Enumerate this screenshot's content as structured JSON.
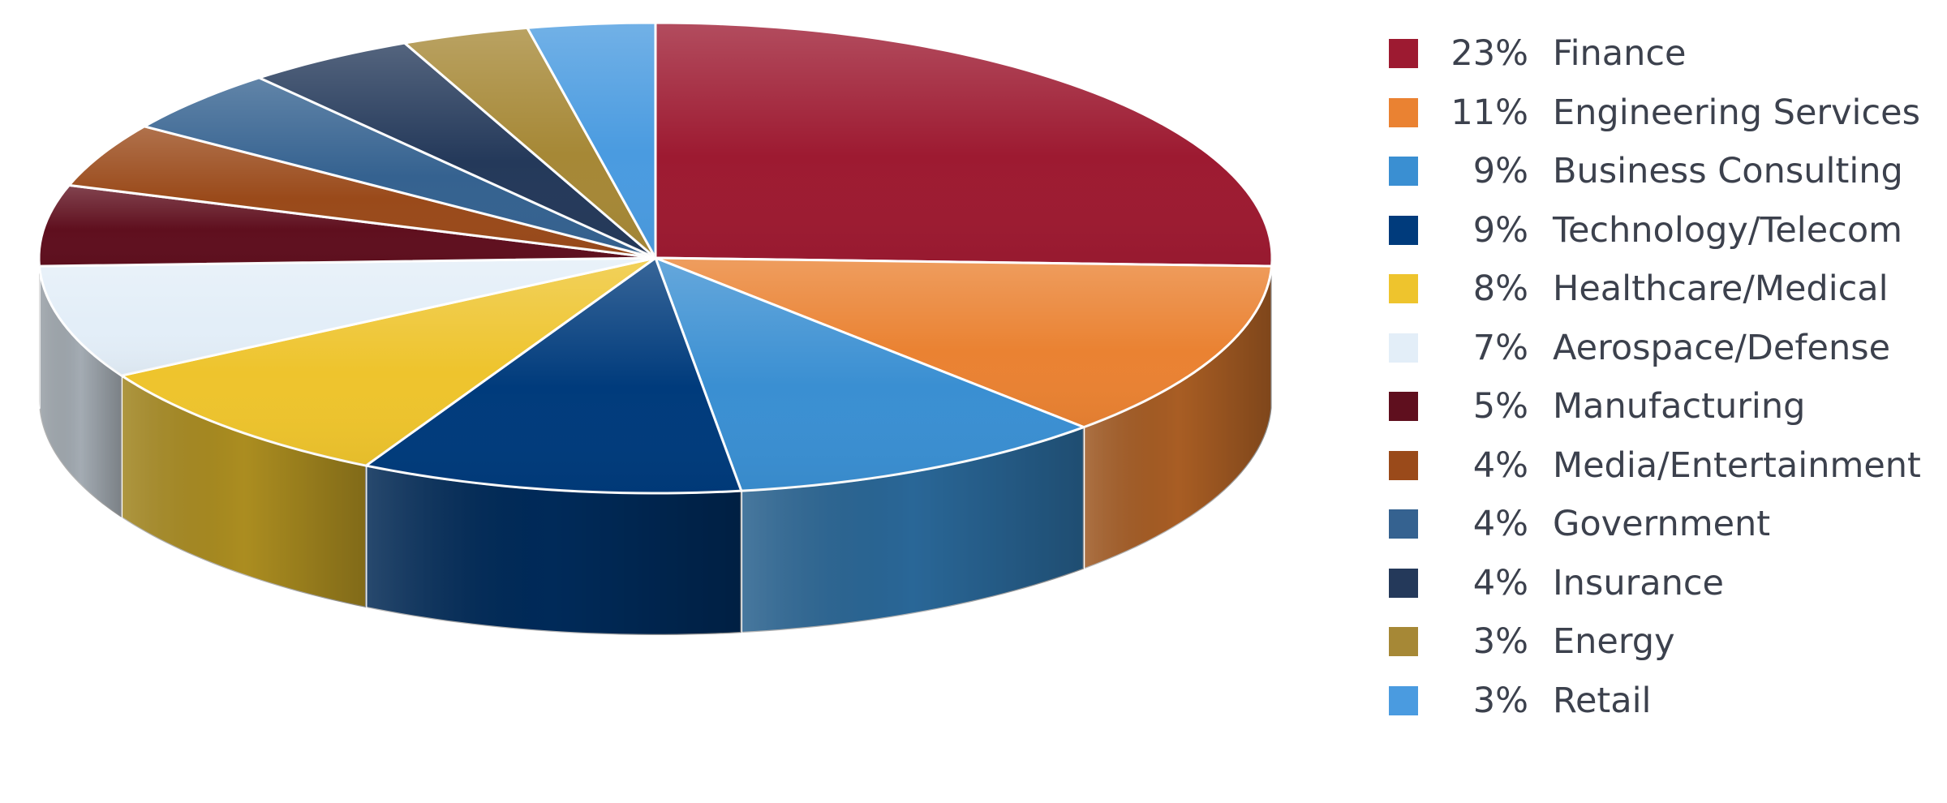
{
  "chart_data": {
    "type": "pie",
    "style": "3d",
    "title": "",
    "legend_position": "right",
    "slices": [
      {
        "label": "Finance",
        "percent_label": "23%",
        "value": 23,
        "color": "#9d1a31"
      },
      {
        "label": "Engineering Services",
        "percent_label": "11%",
        "value": 11,
        "color": "#ea8232"
      },
      {
        "label": "Business Consulting",
        "percent_label": "9%",
        "value": 9,
        "color": "#3a8fd2"
      },
      {
        "label": "Technology/Telecom",
        "percent_label": "9%",
        "value": 9,
        "color": "#003b7c"
      },
      {
        "label": "Healthcare/Medical",
        "percent_label": "8%",
        "value": 8,
        "color": "#eec42d"
      },
      {
        "label": "Aerospace/Defense",
        "percent_label": "7%",
        "value": 7,
        "color": "#e3eef8"
      },
      {
        "label": "Manufacturing",
        "percent_label": "5%",
        "value": 5,
        "color": "#5f0f1e"
      },
      {
        "label": "Media/Entertainment",
        "percent_label": "4%",
        "value": 4,
        "color": "#9a4a1a"
      },
      {
        "label": "Government",
        "percent_label": "4%",
        "value": 4,
        "color": "#356290"
      },
      {
        "label": "Insurance",
        "percent_label": "4%",
        "value": 4,
        "color": "#24395a"
      },
      {
        "label": "Energy",
        "percent_label": "3%",
        "value": 3,
        "color": "#a68836"
      },
      {
        "label": "Retail",
        "percent_label": "3%",
        "value": 3,
        "color": "#4a9be0"
      }
    ]
  }
}
